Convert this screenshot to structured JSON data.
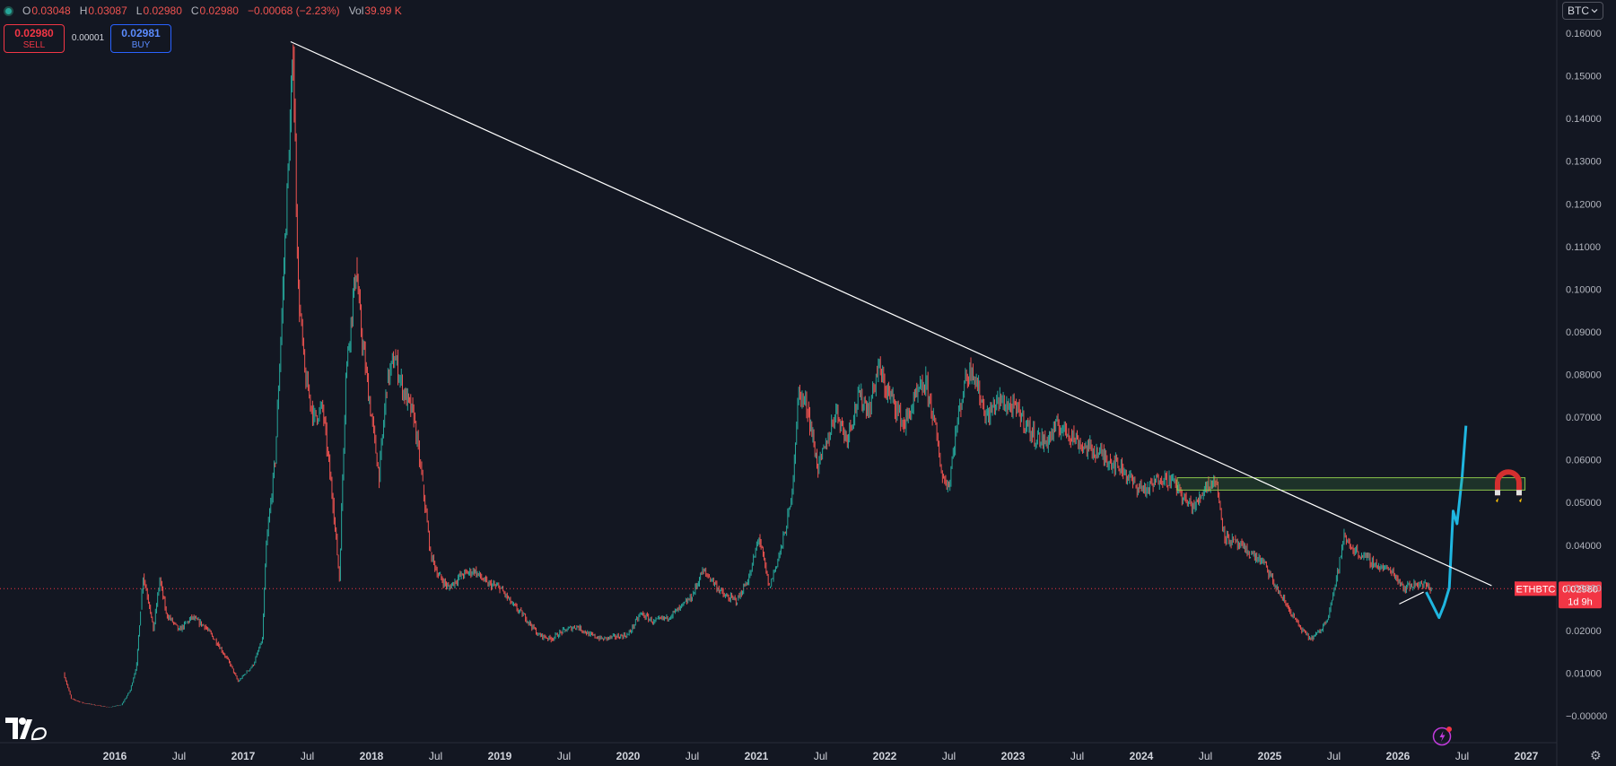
{
  "header": {
    "ohlc": [
      {
        "key": "O",
        "value": "0.03048"
      },
      {
        "key": "H",
        "value": "0.03087"
      },
      {
        "key": "L",
        "value": "0.02980"
      },
      {
        "key": "C",
        "value": "0.02980"
      }
    ],
    "change": "−0.00068 (−2.23%)",
    "volume_label": "Vol",
    "volume_value": "39.99 K"
  },
  "trade": {
    "sell_price": "0.02980",
    "sell_label": "SELL",
    "spread": "0.00001",
    "buy_price": "0.02981",
    "buy_label": "BUY"
  },
  "compare_button": "BTC",
  "chart_data": {
    "type": "line",
    "symbol": "ETHBTC",
    "last_price": "0.02980",
    "countdown": "1d 9h",
    "ylim": [
      -0.005,
      0.162
    ],
    "y_ticks": [
      "0.16000",
      "0.15000",
      "0.14000",
      "0.13000",
      "0.12000",
      "0.11000",
      "0.10000",
      "0.09000",
      "0.08000",
      "0.07000",
      "0.06000",
      "0.05000",
      "0.04000",
      "0.03000",
      "0.02000",
      "0.01000",
      "−0.00000"
    ],
    "y_tick_values": [
      0.16,
      0.15,
      0.14,
      0.13,
      0.12,
      0.11,
      0.1,
      0.09,
      0.08,
      0.07,
      0.06,
      0.05,
      0.04,
      0.03,
      0.02,
      0.01,
      0.0
    ],
    "x_labels": [
      "2016",
      "Jul",
      "2017",
      "Jul",
      "2018",
      "Jul",
      "2019",
      "Jul",
      "2020",
      "Jul",
      "2021",
      "Jul",
      "2022",
      "Jul",
      "2023",
      "Jul",
      "2024",
      "Jul",
      "2025",
      "Jul",
      "2026",
      "Jul",
      "2027"
    ],
    "x_label_values": [
      2016,
      2016.5,
      2017,
      2017.5,
      2018,
      2018.5,
      2019,
      2019.5,
      2020,
      2020.5,
      2021,
      2021.5,
      2022,
      2022.5,
      2023,
      2023.5,
      2024,
      2024.5,
      2025,
      2025.5,
      2026,
      2026.5,
      2027
    ],
    "series": [
      {
        "values": [
          [
            2015.6,
            0.01
          ],
          [
            2015.66,
            0.004
          ],
          [
            2015.75,
            0.003
          ],
          [
            2015.85,
            0.0025
          ],
          [
            2015.95,
            0.002
          ],
          [
            2016.05,
            0.0025
          ],
          [
            2016.12,
            0.006
          ],
          [
            2016.17,
            0.012
          ],
          [
            2016.2,
            0.025
          ],
          [
            2016.22,
            0.033
          ],
          [
            2016.27,
            0.026
          ],
          [
            2016.3,
            0.02
          ],
          [
            2016.35,
            0.032
          ],
          [
            2016.4,
            0.024
          ],
          [
            2016.5,
            0.02
          ],
          [
            2016.6,
            0.023
          ],
          [
            2016.7,
            0.021
          ],
          [
            2016.8,
            0.017
          ],
          [
            2016.9,
            0.012
          ],
          [
            2016.96,
            0.008
          ],
          [
            2017.02,
            0.01
          ],
          [
            2017.08,
            0.012
          ],
          [
            2017.15,
            0.018
          ],
          [
            2017.18,
            0.04
          ],
          [
            2017.25,
            0.06
          ],
          [
            2017.31,
            0.1
          ],
          [
            2017.39,
            0.155
          ],
          [
            2017.43,
            0.1
          ],
          [
            2017.48,
            0.08
          ],
          [
            2017.55,
            0.07
          ],
          [
            2017.62,
            0.072
          ],
          [
            2017.7,
            0.05
          ],
          [
            2017.75,
            0.032
          ],
          [
            2017.8,
            0.08
          ],
          [
            2017.88,
            0.105
          ],
          [
            2017.92,
            0.09
          ],
          [
            2018.0,
            0.07
          ],
          [
            2018.06,
            0.056
          ],
          [
            2018.12,
            0.078
          ],
          [
            2018.18,
            0.084
          ],
          [
            2018.25,
            0.076
          ],
          [
            2018.33,
            0.07
          ],
          [
            2018.4,
            0.054
          ],
          [
            2018.46,
            0.038
          ],
          [
            2018.52,
            0.033
          ],
          [
            2018.6,
            0.03
          ],
          [
            2018.7,
            0.033
          ],
          [
            2018.8,
            0.034
          ],
          [
            2018.9,
            0.031
          ],
          [
            2019.0,
            0.03
          ],
          [
            2019.1,
            0.026
          ],
          [
            2019.2,
            0.023
          ],
          [
            2019.3,
            0.019
          ],
          [
            2019.4,
            0.018
          ],
          [
            2019.5,
            0.02
          ],
          [
            2019.6,
            0.021
          ],
          [
            2019.7,
            0.019
          ],
          [
            2019.8,
            0.018
          ],
          [
            2019.9,
            0.0185
          ],
          [
            2020.0,
            0.019
          ],
          [
            2020.1,
            0.024
          ],
          [
            2020.2,
            0.022
          ],
          [
            2020.3,
            0.023
          ],
          [
            2020.4,
            0.025
          ],
          [
            2020.5,
            0.028
          ],
          [
            2020.58,
            0.034
          ],
          [
            2020.65,
            0.032
          ],
          [
            2020.75,
            0.028
          ],
          [
            2020.85,
            0.027
          ],
          [
            2020.95,
            0.033
          ],
          [
            2021.02,
            0.042
          ],
          [
            2021.1,
            0.03
          ],
          [
            2021.2,
            0.04
          ],
          [
            2021.27,
            0.05
          ],
          [
            2021.33,
            0.076
          ],
          [
            2021.4,
            0.072
          ],
          [
            2021.48,
            0.058
          ],
          [
            2021.55,
            0.064
          ],
          [
            2021.62,
            0.072
          ],
          [
            2021.7,
            0.065
          ],
          [
            2021.8,
            0.075
          ],
          [
            2021.88,
            0.072
          ],
          [
            2021.95,
            0.082
          ],
          [
            2022.0,
            0.077
          ],
          [
            2022.08,
            0.073
          ],
          [
            2022.15,
            0.068
          ],
          [
            2022.25,
            0.075
          ],
          [
            2022.32,
            0.078
          ],
          [
            2022.38,
            0.07
          ],
          [
            2022.45,
            0.056
          ],
          [
            2022.5,
            0.054
          ],
          [
            2022.55,
            0.066
          ],
          [
            2022.62,
            0.078
          ],
          [
            2022.68,
            0.082
          ],
          [
            2022.74,
            0.075
          ],
          [
            2022.8,
            0.07
          ],
          [
            2022.88,
            0.074
          ],
          [
            2022.95,
            0.073
          ],
          [
            2023.05,
            0.071
          ],
          [
            2023.15,
            0.066
          ],
          [
            2023.25,
            0.064
          ],
          [
            2023.35,
            0.068
          ],
          [
            2023.45,
            0.066
          ],
          [
            2023.55,
            0.063
          ],
          [
            2023.65,
            0.062
          ],
          [
            2023.75,
            0.06
          ],
          [
            2023.85,
            0.058
          ],
          [
            2023.95,
            0.054
          ],
          [
            2024.05,
            0.053
          ],
          [
            2024.15,
            0.056
          ],
          [
            2024.25,
            0.055
          ],
          [
            2024.35,
            0.05
          ],
          [
            2024.42,
            0.049
          ],
          [
            2024.5,
            0.054
          ],
          [
            2024.58,
            0.055
          ],
          [
            2024.65,
            0.042
          ],
          [
            2024.75,
            0.04
          ],
          [
            2024.85,
            0.038
          ],
          [
            2024.95,
            0.036
          ],
          [
            2025.05,
            0.03
          ],
          [
            2025.15,
            0.025
          ],
          [
            2025.25,
            0.02
          ],
          [
            2025.32,
            0.018
          ],
          [
            2025.4,
            0.02
          ],
          [
            2025.45,
            0.023
          ],
          [
            2025.52,
            0.032
          ],
          [
            2025.58,
            0.042
          ],
          [
            2025.65,
            0.039
          ],
          [
            2025.75,
            0.037
          ],
          [
            2025.85,
            0.035
          ],
          [
            2025.95,
            0.034
          ],
          [
            2026.05,
            0.03
          ],
          [
            2026.15,
            0.031
          ],
          [
            2026.22,
            0.0305
          ],
          [
            2026.26,
            0.0298
          ]
        ]
      },
      {
        "values": [
          [
            2026.22,
            0.029
          ],
          [
            2026.32,
            0.023
          ],
          [
            2026.36,
            0.026
          ],
          [
            2026.4,
            0.03
          ],
          [
            2026.43,
            0.048
          ],
          [
            2026.46,
            0.045
          ],
          [
            2026.5,
            0.056
          ],
          [
            2026.53,
            0.068
          ]
        ]
      }
    ],
    "trendlines": [
      {
        "from": [
          2017.37,
          0.158
        ],
        "to": [
          2026.73,
          0.0305
        ]
      },
      {
        "from": [
          2026.01,
          0.0262
        ],
        "to": [
          2026.2,
          0.029
        ]
      }
    ],
    "zone": {
      "x0": 2024.28,
      "x1": 2026.99,
      "y0": 0.0529,
      "y1": 0.0558
    },
    "grid": false
  }
}
